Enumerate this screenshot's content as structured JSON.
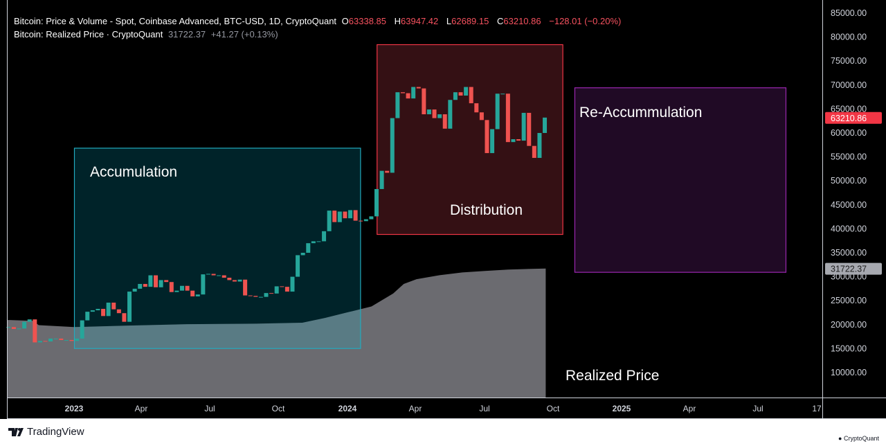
{
  "legend": {
    "line1": {
      "title": "Bitcoin: Price & Volume - Spot, Coinbase Advanced, BTC-USD, 1D, CryptoQuant",
      "o_label": "O",
      "o": "63338.85",
      "h_label": "H",
      "h": "63947.42",
      "l_label": "L",
      "l": "62689.15",
      "c_label": "C",
      "c": "63210.86",
      "change": "−128.01 (−0.20%)"
    },
    "line2": {
      "title": "Bitcoin: Realized Price · CryptoQuant",
      "value": "31722.37",
      "change": "+41.27 (+0.13%)"
    }
  },
  "footer": {
    "brand": "TradingView",
    "source": "CryptoQuant"
  },
  "colors": {
    "up": "#26a69a",
    "down": "#ef5350",
    "realized_fill": "#6b6b70",
    "accumulation": "#22abbf",
    "distribution": "#f23645",
    "reaccumulation": "#9c27b0"
  },
  "chart_data": {
    "type": "candlestick+area",
    "y_axis": {
      "min": 10000,
      "max": 85000,
      "ticks": [
        "85000.00",
        "80000.00",
        "75000.00",
        "70000.00",
        "65000.00",
        "60000.00",
        "55000.00",
        "50000.00",
        "45000.00",
        "40000.00",
        "35000.00",
        "30000.00",
        "25000.00",
        "20000.00",
        "15000.00",
        "10000.00"
      ]
    },
    "x_axis": {
      "ticks": [
        {
          "label": "2023",
          "bold": true
        },
        {
          "label": "Apr"
        },
        {
          "label": "Jul"
        },
        {
          "label": "Oct"
        },
        {
          "label": "2024",
          "bold": true
        },
        {
          "label": "Apr"
        },
        {
          "label": "Jul"
        },
        {
          "label": "Oct"
        },
        {
          "label": "2025",
          "bold": true
        },
        {
          "label": "Apr"
        },
        {
          "label": "Jul"
        },
        {
          "label": "17"
        }
      ]
    },
    "last_price_label": "63210.86",
    "last_realized_label": "31722.37",
    "price_series": {
      "name": "BTC-USD",
      "points": [
        [
          "2022-10-03",
          19500
        ],
        [
          "2022-10-10",
          19100
        ],
        [
          "2022-10-17",
          19200
        ],
        [
          "2022-10-24",
          20600
        ],
        [
          "2022-10-31",
          21100
        ],
        [
          "2022-11-07",
          16300
        ],
        [
          "2022-11-14",
          16600
        ],
        [
          "2022-11-21",
          16500
        ],
        [
          "2022-11-28",
          17100
        ],
        [
          "2022-12-05",
          17100
        ],
        [
          "2022-12-12",
          16800
        ],
        [
          "2022-12-19",
          16800
        ],
        [
          "2022-12-26",
          16600
        ],
        [
          "2023-01-02",
          17100
        ],
        [
          "2023-01-09",
          20900
        ],
        [
          "2023-01-16",
          22700
        ],
        [
          "2023-01-23",
          23000
        ],
        [
          "2023-01-30",
          23300
        ],
        [
          "2023-02-06",
          21800
        ],
        [
          "2023-02-13",
          24600
        ],
        [
          "2023-02-20",
          23200
        ],
        [
          "2023-02-27",
          22400
        ],
        [
          "2023-03-06",
          20600
        ],
        [
          "2023-03-13",
          26900
        ],
        [
          "2023-03-20",
          27500
        ],
        [
          "2023-03-27",
          28500
        ],
        [
          "2023-04-03",
          27900
        ],
        [
          "2023-04-10",
          30300
        ],
        [
          "2023-04-17",
          27800
        ],
        [
          "2023-04-24",
          29300
        ],
        [
          "2023-05-01",
          28900
        ],
        [
          "2023-05-08",
          26800
        ],
        [
          "2023-05-15",
          27100
        ],
        [
          "2023-05-22",
          28100
        ],
        [
          "2023-05-29",
          27100
        ],
        [
          "2023-06-05",
          25900
        ],
        [
          "2023-06-12",
          26300
        ],
        [
          "2023-06-19",
          30500
        ],
        [
          "2023-06-26",
          30600
        ],
        [
          "2023-07-03",
          30300
        ],
        [
          "2023-07-10",
          30300
        ],
        [
          "2023-07-17",
          29800
        ],
        [
          "2023-07-24",
          29300
        ],
        [
          "2023-07-31",
          29000
        ],
        [
          "2023-08-07",
          29400
        ],
        [
          "2023-08-14",
          26100
        ],
        [
          "2023-08-21",
          26000
        ],
        [
          "2023-08-28",
          25800
        ],
        [
          "2023-09-04",
          25800
        ],
        [
          "2023-09-11",
          26600
        ],
        [
          "2023-09-18",
          26500
        ],
        [
          "2023-09-25",
          28000
        ],
        [
          "2023-10-02",
          27900
        ],
        [
          "2023-10-09",
          26900
        ],
        [
          "2023-10-16",
          30000
        ],
        [
          "2023-10-23",
          34500
        ],
        [
          "2023-10-30",
          35000
        ],
        [
          "2023-11-06",
          37000
        ],
        [
          "2023-11-13",
          37400
        ],
        [
          "2023-11-20",
          37400
        ],
        [
          "2023-11-27",
          39500
        ],
        [
          "2023-12-04",
          43800
        ],
        [
          "2023-12-11",
          41400
        ],
        [
          "2023-12-18",
          43600
        ],
        [
          "2023-12-25",
          42200
        ],
        [
          "2024-01-01",
          43900
        ],
        [
          "2024-01-08",
          41700
        ],
        [
          "2024-01-15",
          41600
        ],
        [
          "2024-01-22",
          42000
        ],
        [
          "2024-01-29",
          42600
        ],
        [
          "2024-02-05",
          48300
        ],
        [
          "2024-02-12",
          52100
        ],
        [
          "2024-02-19",
          51700
        ],
        [
          "2024-02-26",
          63100
        ],
        [
          "2024-03-04",
          68500
        ],
        [
          "2024-03-11",
          68300
        ],
        [
          "2024-03-18",
          67200
        ],
        [
          "2024-03-25",
          69600
        ],
        [
          "2024-04-01",
          69300
        ],
        [
          "2024-04-08",
          63900
        ],
        [
          "2024-04-15",
          64900
        ],
        [
          "2024-04-22",
          63100
        ],
        [
          "2024-04-29",
          63900
        ],
        [
          "2024-05-06",
          60900
        ],
        [
          "2024-05-13",
          66900
        ],
        [
          "2024-05-20",
          68500
        ],
        [
          "2024-05-27",
          67800
        ],
        [
          "2024-06-03",
          69600
        ],
        [
          "2024-06-10",
          66200
        ],
        [
          "2024-06-17",
          64300
        ],
        [
          "2024-06-24",
          62700
        ],
        [
          "2024-07-01",
          55800
        ],
        [
          "2024-07-08",
          60800
        ],
        [
          "2024-07-15",
          68200
        ],
        [
          "2024-07-22",
          68200
        ],
        [
          "2024-07-29",
          58100
        ],
        [
          "2024-08-05",
          58700
        ],
        [
          "2024-08-12",
          58400
        ],
        [
          "2024-08-19",
          64200
        ],
        [
          "2024-08-26",
          57300
        ],
        [
          "2024-09-02",
          54800
        ],
        [
          "2024-09-09",
          60000
        ],
        [
          "2024-09-16",
          63210.86
        ]
      ]
    },
    "realized_price": {
      "name": "Realized Price",
      "points": [
        [
          "2022-10-01",
          21000
        ],
        [
          "2022-11-07",
          20800
        ],
        [
          "2022-11-15",
          19900
        ],
        [
          "2023-01-01",
          19500
        ],
        [
          "2023-03-10",
          19800
        ],
        [
          "2023-06-01",
          20100
        ],
        [
          "2023-09-01",
          20200
        ],
        [
          "2023-11-01",
          20400
        ],
        [
          "2023-12-01",
          21400
        ],
        [
          "2024-01-01",
          22600
        ],
        [
          "2024-02-01",
          23800
        ],
        [
          "2024-03-01",
          26500
        ],
        [
          "2024-03-15",
          28500
        ],
        [
          "2024-04-01",
          29500
        ],
        [
          "2024-05-01",
          30300
        ],
        [
          "2024-06-01",
          30900
        ],
        [
          "2024-07-01",
          31200
        ],
        [
          "2024-08-01",
          31500
        ],
        [
          "2024-09-20",
          31722.37
        ]
      ]
    },
    "annotations": [
      {
        "label": "Accumulation",
        "from": "2023-01-01",
        "to": "2024-01-17",
        "low": 15100,
        "high": 56900,
        "color": "accumulation"
      },
      {
        "label": "Distribution",
        "from": "2024-02-08",
        "to": "2024-10-13",
        "low": 38900,
        "high": 78500,
        "color": "distribution"
      },
      {
        "label": "Re-Accummulation",
        "from": "2024-10-30",
        "to": "2025-08-25",
        "low": 31000,
        "high": 69500,
        "color": "reaccumulation"
      },
      {
        "label": "Realized Price",
        "color": "text"
      }
    ]
  }
}
